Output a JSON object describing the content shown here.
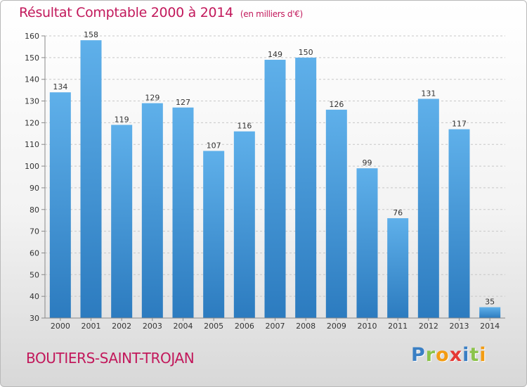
{
  "header": {
    "title": "Résultat Comptable 2000 à 2014",
    "subtitle": "(en milliers d'€)"
  },
  "footer": {
    "commune": "BOUTIERS-SAINT-TROJAN",
    "logo": [
      "P",
      "r",
      "o",
      "x",
      "i",
      "t",
      "i"
    ]
  },
  "colors": {
    "title": "#c2185b",
    "bar_light": "#5fb0ea",
    "bar_dark": "#2c7bbf",
    "logo": [
      "#3a7fc4",
      "#8bc34a",
      "#f39c12",
      "#e53935",
      "#3a7fc4",
      "#8bc34a",
      "#f39c12"
    ]
  },
  "chart_data": {
    "type": "bar",
    "categories": [
      "2000",
      "2001",
      "2002",
      "2003",
      "2004",
      "2005",
      "2006",
      "2007",
      "2008",
      "2009",
      "2010",
      "2011",
      "2012",
      "2013",
      "2014"
    ],
    "values": [
      134,
      158,
      119,
      129,
      127,
      107,
      116,
      149,
      150,
      126,
      99,
      76,
      131,
      117,
      35
    ],
    "title": "Résultat Comptable 2000 à 2014",
    "subtitle": "(en milliers d'€)",
    "ylim": [
      30,
      160
    ],
    "yticks": [
      30,
      40,
      50,
      60,
      70,
      80,
      90,
      100,
      110,
      120,
      130,
      140,
      150,
      160
    ],
    "grid": "horizontal dashed",
    "show_value_labels": true
  }
}
